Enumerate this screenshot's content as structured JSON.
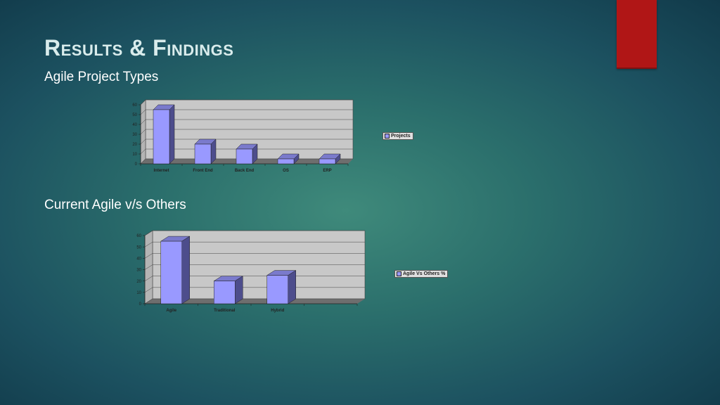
{
  "slide": {
    "title": "Results & Findings",
    "accent_color": "#b01616"
  },
  "sections": [
    {
      "subtitle": "Agile Project Types"
    },
    {
      "subtitle": "Current Agile v/s Others"
    }
  ],
  "chart_data": [
    {
      "type": "bar",
      "categories": [
        "Internet",
        "Front End",
        "Back End",
        "OS",
        "ERP"
      ],
      "series": [
        {
          "name": "Projects",
          "values": [
            55,
            20,
            15,
            5,
            5
          ]
        }
      ],
      "y_ticks": [
        "0",
        "10",
        "20",
        "30",
        "40",
        "50",
        "60"
      ],
      "ylim": [
        0,
        60
      ],
      "grid": true,
      "legend": "right",
      "bar_color": "#9999ff"
    },
    {
      "type": "bar",
      "categories": [
        "Agile",
        "Traditional",
        "Hybrid",
        ""
      ],
      "series": [
        {
          "name": "Agile Vs Others %",
          "values": [
            55,
            20,
            25,
            null
          ]
        }
      ],
      "y_ticks": [
        "0",
        "10",
        "20",
        "30",
        "40",
        "50",
        "60"
      ],
      "ylim": [
        0,
        60
      ],
      "grid": true,
      "legend": "right",
      "bar_color": "#9999ff"
    }
  ]
}
